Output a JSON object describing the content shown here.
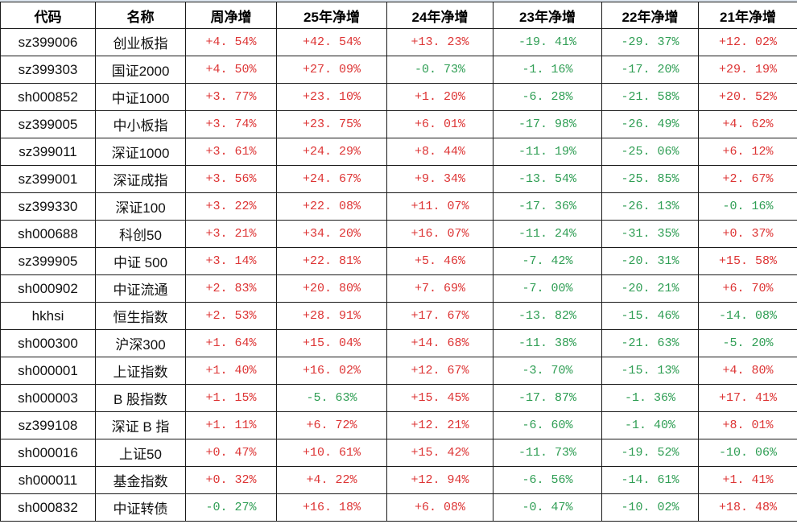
{
  "colors": {
    "positive": "#dd3434",
    "negative": "#2f9e54",
    "grid": "#1a1a1a",
    "header_text": "#000000"
  },
  "table": {
    "columns": [
      "代码",
      "名称",
      "周净增",
      "25年净增",
      "24年净增",
      "23年净增",
      "22年净增",
      "21年净增"
    ],
    "rows": [
      {
        "code": "sz399006",
        "name": "创业板指",
        "values": [
          "+4. 54%",
          "+42. 54%",
          "+13. 23%",
          "-19. 41%",
          "-29. 37%",
          "+12. 02%"
        ]
      },
      {
        "code": "sz399303",
        "name": "国证2000",
        "values": [
          "+4. 50%",
          "+27. 09%",
          "-0. 73%",
          "-1. 16%",
          "-17. 20%",
          "+29. 19%"
        ]
      },
      {
        "code": "sh000852",
        "name": "中证1000",
        "values": [
          "+3. 77%",
          "+23. 10%",
          "+1. 20%",
          "-6. 28%",
          "-21. 58%",
          "+20. 52%"
        ]
      },
      {
        "code": "sz399005",
        "name": "中小板指",
        "values": [
          "+3. 74%",
          "+23. 75%",
          "+6. 01%",
          "-17. 98%",
          "-26. 49%",
          "+4. 62%"
        ]
      },
      {
        "code": "sz399011",
        "name": "深证1000",
        "values": [
          "+3. 61%",
          "+24. 29%",
          "+8. 44%",
          "-11. 19%",
          "-25. 06%",
          "+6. 12%"
        ]
      },
      {
        "code": "sz399001",
        "name": "深证成指",
        "values": [
          "+3. 56%",
          "+24. 67%",
          "+9. 34%",
          "-13. 54%",
          "-25. 85%",
          "+2. 67%"
        ]
      },
      {
        "code": "sz399330",
        "name": "深证100",
        "values": [
          "+3. 22%",
          "+22. 08%",
          "+11. 07%",
          "-17. 36%",
          "-26. 13%",
          "-0. 16%"
        ]
      },
      {
        "code": "sh000688",
        "name": "科创50",
        "values": [
          "+3. 21%",
          "+34. 20%",
          "+16. 07%",
          "-11. 24%",
          "-31. 35%",
          "+0. 37%"
        ]
      },
      {
        "code": "sz399905",
        "name": "中证 500",
        "values": [
          "+3. 14%",
          "+22. 81%",
          "+5. 46%",
          "-7. 42%",
          "-20. 31%",
          "+15. 58%"
        ]
      },
      {
        "code": "sh000902",
        "name": "中证流通",
        "values": [
          "+2. 83%",
          "+20. 80%",
          "+7. 69%",
          "-7. 00%",
          "-20. 21%",
          "+6. 70%"
        ]
      },
      {
        "code": "hkhsi",
        "name": "恒生指数",
        "values": [
          "+2. 53%",
          "+28. 91%",
          "+17. 67%",
          "-13. 82%",
          "-15. 46%",
          "-14. 08%"
        ]
      },
      {
        "code": "sh000300",
        "name": "沪深300",
        "values": [
          "+1. 64%",
          "+15. 04%",
          "+14. 68%",
          "-11. 38%",
          "-21. 63%",
          "-5. 20%"
        ]
      },
      {
        "code": "sh000001",
        "name": "上证指数",
        "values": [
          "+1. 40%",
          "+16. 02%",
          "+12. 67%",
          "-3. 70%",
          "-15. 13%",
          "+4. 80%"
        ]
      },
      {
        "code": "sh000003",
        "name": "B 股指数",
        "values": [
          "+1. 15%",
          "-5. 63%",
          "+15. 45%",
          "-17. 87%",
          "-1. 36%",
          "+17. 41%"
        ]
      },
      {
        "code": "sz399108",
        "name": "深证 B 指",
        "values": [
          "+1. 11%",
          "+6. 72%",
          "+12. 21%",
          "-6. 60%",
          "-1. 40%",
          "+8. 01%"
        ]
      },
      {
        "code": "sh000016",
        "name": "上证50",
        "values": [
          "+0. 47%",
          "+10. 61%",
          "+15. 42%",
          "-11. 73%",
          "-19. 52%",
          "-10. 06%"
        ]
      },
      {
        "code": "sh000011",
        "name": "基金指数",
        "values": [
          "+0. 32%",
          "+4. 22%",
          "+12. 94%",
          "-6. 56%",
          "-14. 61%",
          "+1. 41%"
        ]
      },
      {
        "code": "sh000832",
        "name": "中证转债",
        "values": [
          "-0. 27%",
          "+16. 18%",
          "+6. 08%",
          "-0. 47%",
          "-10. 02%",
          "+18. 48%"
        ]
      }
    ]
  }
}
